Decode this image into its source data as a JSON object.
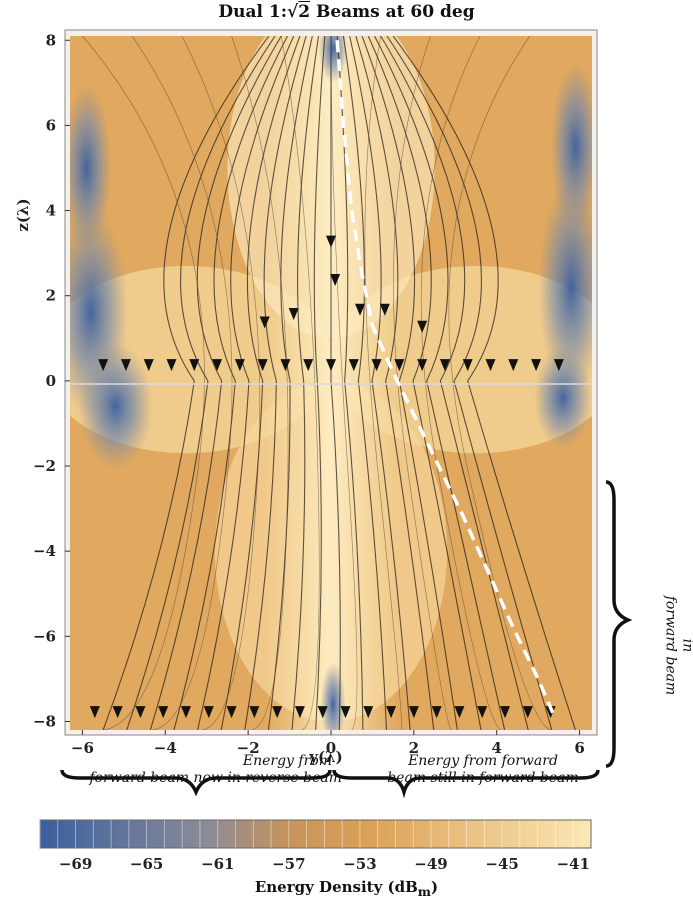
{
  "title_prefix": "Dual 1:",
  "title_sqrt": "2",
  "title_suffix": " Beams at 60 deg",
  "annotations": {
    "left": [
      "Energy from",
      "forward beam now in reverse beam"
    ],
    "right": [
      "Energy from forward",
      "beam still in forward beam"
    ],
    "side": [
      "Energy from reverse beam now in",
      "forward beam"
    ]
  },
  "chart_data": {
    "type": "heatmap",
    "title": "Dual 1:√2 Beams at 60 deg",
    "xlabel": "y(λ)",
    "ylabel": "z(λ)",
    "xlim": [
      -6.3,
      6.3
    ],
    "ylim": [
      -8.2,
      8.1
    ],
    "x_ticks": [
      -6,
      -4,
      -2,
      0,
      2,
      4,
      6
    ],
    "x_tick_labels": [
      "−6",
      "−4",
      "−2",
      "0",
      "2",
      "4",
      "6"
    ],
    "y_ticks": [
      8,
      6,
      4,
      2,
      0,
      -2,
      -4,
      -6,
      -8
    ],
    "y_tick_labels": [
      "8",
      "6",
      "4",
      "2",
      "0",
      "−2",
      "−4",
      "−6",
      "−8"
    ],
    "colorbar": {
      "label": "Energy Density (dBm)",
      "label_main": "Energy Density (dB",
      "label_sub": "m",
      "label_end": ")",
      "range": [
        -71,
        -40
      ],
      "ticks": [
        -69,
        -65,
        -61,
        -57,
        -53,
        -49,
        -45,
        -41
      ],
      "tick_labels": [
        "−69",
        "−65",
        "−61",
        "−57",
        "−53",
        "−49",
        "−45",
        "−41"
      ],
      "colors": [
        "#3a5f9f",
        "#7d8aa6",
        "#d09a52",
        "#fde8b5"
      ]
    },
    "dashed_curve": {
      "color": "#ffffff",
      "x": [
        0.15,
        0.3,
        0.5,
        0.75,
        1.0,
        1.5,
        2.0,
        2.6,
        3.2,
        3.8,
        4.4,
        5.0,
        5.4
      ],
      "y": [
        8,
        6,
        4,
        2.5,
        1.3,
        0.2,
        -0.8,
        -2.0,
        -3.2,
        -4.5,
        -5.8,
        -7.0,
        -7.9
      ]
    }
  }
}
